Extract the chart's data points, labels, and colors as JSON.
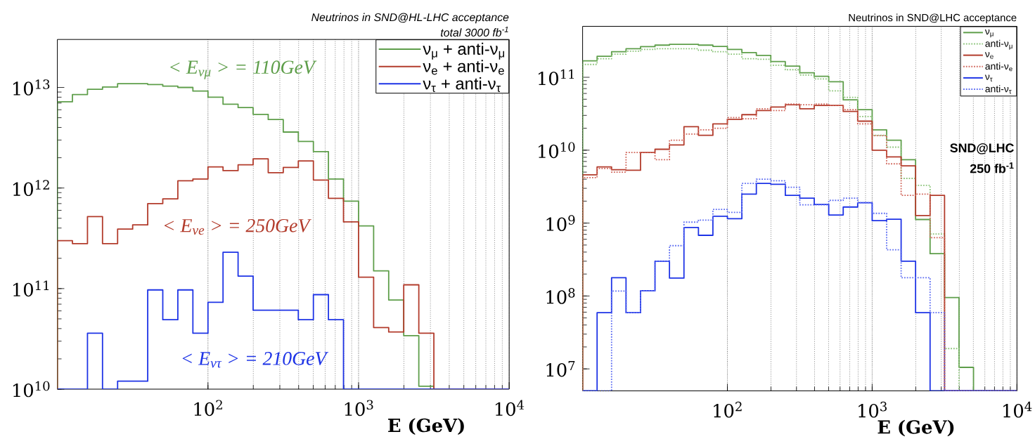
{
  "chart_data": [
    {
      "type": "histogram",
      "title": "Neutrinos in SND@HL-LHC acceptance",
      "subtitle": "total 3000 fb$^{-1}$",
      "xlabel": "E (GeV)",
      "annotations": [
        "< E$_{νμ}$ > = 110GeV",
        "< E$_{νe}$ > = 250GeV",
        "< E$_{ντ}$ > = 210GeV"
      ],
      "bins": [
        10,
        12.59,
        15.85,
        19.95,
        25.12,
        31.62,
        39.81,
        50.12,
        63.1,
        79.43,
        100,
        125.9,
        158.5,
        199.5,
        251.2,
        316.2,
        398.1,
        501.2,
        631,
        794.3,
        1000,
        1259,
        1585,
        1995,
        2512,
        3162,
        3981,
        5012,
        6310,
        7943,
        10000
      ],
      "series": [
        {
          "name": "ν$_{μ}$ + anti-ν$_{μ}$",
          "color": "#5e9e4a",
          "values": [
            7200000000000.0,
            8500000000000.0,
            9600000000000.0,
            10100000000000.0,
            10900000000000.0,
            10900000000000.0,
            10700000000000.0,
            10300000000000.0,
            10000000000000.0,
            9200000000000.0,
            8000000000000.0,
            6800000000000.0,
            6300000000000.0,
            5400000000000.0,
            4800000000000.0,
            3600000000000.0,
            2900000000000.0,
            2300000000000.0,
            1230000000000.0,
            740000000000.0,
            420000000000.0,
            150000000000.0,
            77000000000.0,
            34000000000.0,
            10700000000.0,
            null,
            null,
            null,
            null,
            null
          ]
        },
        {
          "name": "ν$_{e}$ + anti-ν$_{e}$",
          "color": "#b23b2b",
          "values": [
            300000000000.0,
            280000000000.0,
            520000000000.0,
            280000000000.0,
            390000000000.0,
            430000000000.0,
            700000000000.0,
            780000000000.0,
            1180000000000.0,
            1230000000000.0,
            1620000000000.0,
            1490000000000.0,
            1700000000000.0,
            1950000000000.0,
            1420000000000.0,
            1600000000000.0,
            1860000000000.0,
            1200000000000.0,
            790000000000.0,
            460000000000.0,
            130000000000.0,
            41000000000.0,
            37000000000.0,
            109000000000.0,
            36000000000.0,
            null,
            null,
            null,
            null,
            null
          ]
        },
        {
          "name": "ν$_{τ}$ + anti-ν$_{τ}$",
          "color": "#1d33e6",
          "values": [
            null,
            null,
            36000000000.0,
            null,
            12000000000.0,
            12000000000.0,
            97000000000.0,
            49000000000.0,
            97000000000.0,
            36000000000.0,
            73000000000.0,
            230000000000.0,
            133000000000.0,
            61000000000.0,
            61000000000.0,
            61000000000.0,
            49000000000.0,
            87000000000.0,
            49000000000.0,
            null,
            null,
            null,
            null,
            null,
            null,
            null,
            null,
            null,
            null,
            null
          ]
        }
      ],
      "xlim": [
        10,
        10000
      ],
      "ylim": [
        10000000000.0,
        30000000000000.0
      ],
      "xticks": [
        {
          "value": 100,
          "label": "10$^{2}$"
        },
        {
          "value": 1000,
          "label": "10$^{3}$"
        },
        {
          "value": 10000,
          "label": "10$^{4}$"
        }
      ],
      "yticks": [
        {
          "value": 10000000000.0,
          "label": "10$^{10}$"
        },
        {
          "value": 100000000000.0,
          "label": "10$^{11}$"
        },
        {
          "value": 1000000000000.0,
          "label": "10$^{12}$"
        },
        {
          "value": 10000000000000.0,
          "label": "10$^{13}$"
        }
      ],
      "log": "xy",
      "grid": "x",
      "legend": "top right"
    },
    {
      "type": "histogram",
      "title": "Neutrinos in SND@LHC acceptance",
      "xlabel": "E (GeV)",
      "annotations": [
        "SND@LHC",
        "250 fb$^{-1}$"
      ],
      "bins": [
        10,
        12.59,
        15.85,
        19.95,
        25.12,
        31.62,
        39.81,
        50.12,
        63.1,
        79.43,
        100,
        125.9,
        158.5,
        199.5,
        251.2,
        316.2,
        398.1,
        501.2,
        631,
        794.3,
        1000,
        1259,
        1585,
        1995,
        2512,
        3162,
        3981,
        5012,
        6310,
        7943,
        10000
      ],
      "series": [
        {
          "name": "ν$_{μ}$",
          "color": "#5e9e4a",
          "values": [
            168000000000.0,
            194000000000.0,
            224000000000.0,
            246000000000.0,
            263000000000.0,
            276000000000.0,
            283000000000.0,
            283000000000.0,
            276000000000.0,
            265000000000.0,
            241000000000.0,
            218000000000.0,
            200000000000.0,
            164000000000.0,
            142000000000.0,
            115000000000.0,
            103000000000.0,
            87000000000.0,
            49000000000.0,
            36000000000.0,
            19000000000.0,
            13700000000.0,
            7400000000.0,
            1120000000.0,
            380000000.0,
            95000000.0,
            10500000.0,
            null,
            null,
            null
          ]
        },
        {
          "name": "anti-ν$_{μ}$",
          "color": "#8cc47a",
          "line_style": "dotted",
          "values": [
            150000000000.0,
            180000000000.0,
            207000000000.0,
            228000000000.0,
            241000000000.0,
            246000000000.0,
            246000000000.0,
            246000000000.0,
            235000000000.0,
            224000000000.0,
            207000000000.0,
            180000000000.0,
            177000000000.0,
            146000000000.0,
            127000000000.0,
            107000000000.0,
            95000000000.0,
            65000000000.0,
            53000000000.0,
            29000000000.0,
            16000000000.0,
            11000000000.0,
            4100000000.0,
            3300000000.0,
            710000000.0,
            19000000.0,
            null,
            null,
            null,
            null
          ]
        },
        {
          "name": "ν$_{e}$",
          "color": "#b23b2b",
          "values": [
            4600000000.0,
            5900000000.0,
            5400000000.0,
            5300000000.0,
            9300000000.0,
            10300000000.0,
            11800000000.0,
            21000000000.0,
            16000000000.0,
            23000000000.0,
            26500000000.0,
            30700000000.0,
            35000000000.0,
            39000000000.0,
            42000000000.0,
            37000000000.0,
            41000000000.0,
            41000000000.0,
            34000000000.0,
            25000000000.0,
            10000000000.0,
            8100000000.0,
            6100000000.0,
            1270000000.0,
            2400000000.0,
            null,
            null,
            null,
            null,
            null
          ]
        },
        {
          "name": "anti-ν$_{e}$",
          "color": "#d0655a",
          "line_style": "dotted",
          "values": [
            4200000000.0,
            5600000000.0,
            5000000000.0,
            9300000000.0,
            9300000000.0,
            7400000000.0,
            13700000000.0,
            16600000000.0,
            19000000000.0,
            20000000000.0,
            28000000000.0,
            27000000000.0,
            37000000000.0,
            35000000000.0,
            43000000000.0,
            42000000000.0,
            43000000000.0,
            41000000000.0,
            36000000000.0,
            23000000000.0,
            15800000000.0,
            6500000000.0,
            2400000000.0,
            2500000000.0,
            630000000.0,
            null,
            null,
            null,
            null,
            null
          ]
        },
        {
          "name": "ν$_{τ}$",
          "color": "#1d33e6",
          "values": [
            null,
            59000000.0,
            178000000.0,
            59000000.0,
            118000000.0,
            300000000.0,
            176000000.0,
            870000000.0,
            680000000.0,
            1240000000.0,
            1150000000.0,
            2500000000.0,
            3500000000.0,
            3400000000.0,
            2400000000.0,
            2200000000.0,
            1800000000.0,
            1290000000.0,
            1660000000.0,
            1900000000.0,
            1080000000.0,
            1130000000.0,
            300000000.0,
            59000000.0,
            null,
            null,
            null,
            null,
            null,
            null
          ]
        },
        {
          "name": "anti-ν$_{τ}$",
          "color": "#5c6cf2",
          "line_style": "dotted",
          "values": [
            null,
            null,
            117000000.0,
            59000000.0,
            118000000.0,
            300000000.0,
            490000000.0,
            1030000000.0,
            1100000000.0,
            1540000000.0,
            1400000000.0,
            3500000000.0,
            4000000000.0,
            3800000000.0,
            3100000000.0,
            1780000000.0,
            1780000000.0,
            2050000000.0,
            2200000000.0,
            1900000000.0,
            1360000000.0,
            430000000.0,
            178000000.0,
            178000000.0,
            59000000.0,
            null,
            null,
            null,
            null,
            null
          ]
        }
      ],
      "xlim": [
        10,
        10000
      ],
      "ylim": [
        5000000.0,
        500000000000.0
      ],
      "xticks": [
        {
          "value": 100,
          "label": "10$^{2}$"
        },
        {
          "value": 1000,
          "label": "10$^{3}$"
        },
        {
          "value": 10000,
          "label": "10$^{4}$"
        }
      ],
      "yticks": [
        {
          "value": 10000000.0,
          "label": "10$^{7}$"
        },
        {
          "value": 100000000.0,
          "label": "10$^{8}$"
        },
        {
          "value": 1000000000.0,
          "label": "10$^{9}$"
        },
        {
          "value": 10000000000.0,
          "label": "10$^{10}$"
        },
        {
          "value": 100000000000.0,
          "label": "10$^{11}$"
        }
      ],
      "log": "xy",
      "grid": "x",
      "legend": "top right"
    }
  ]
}
